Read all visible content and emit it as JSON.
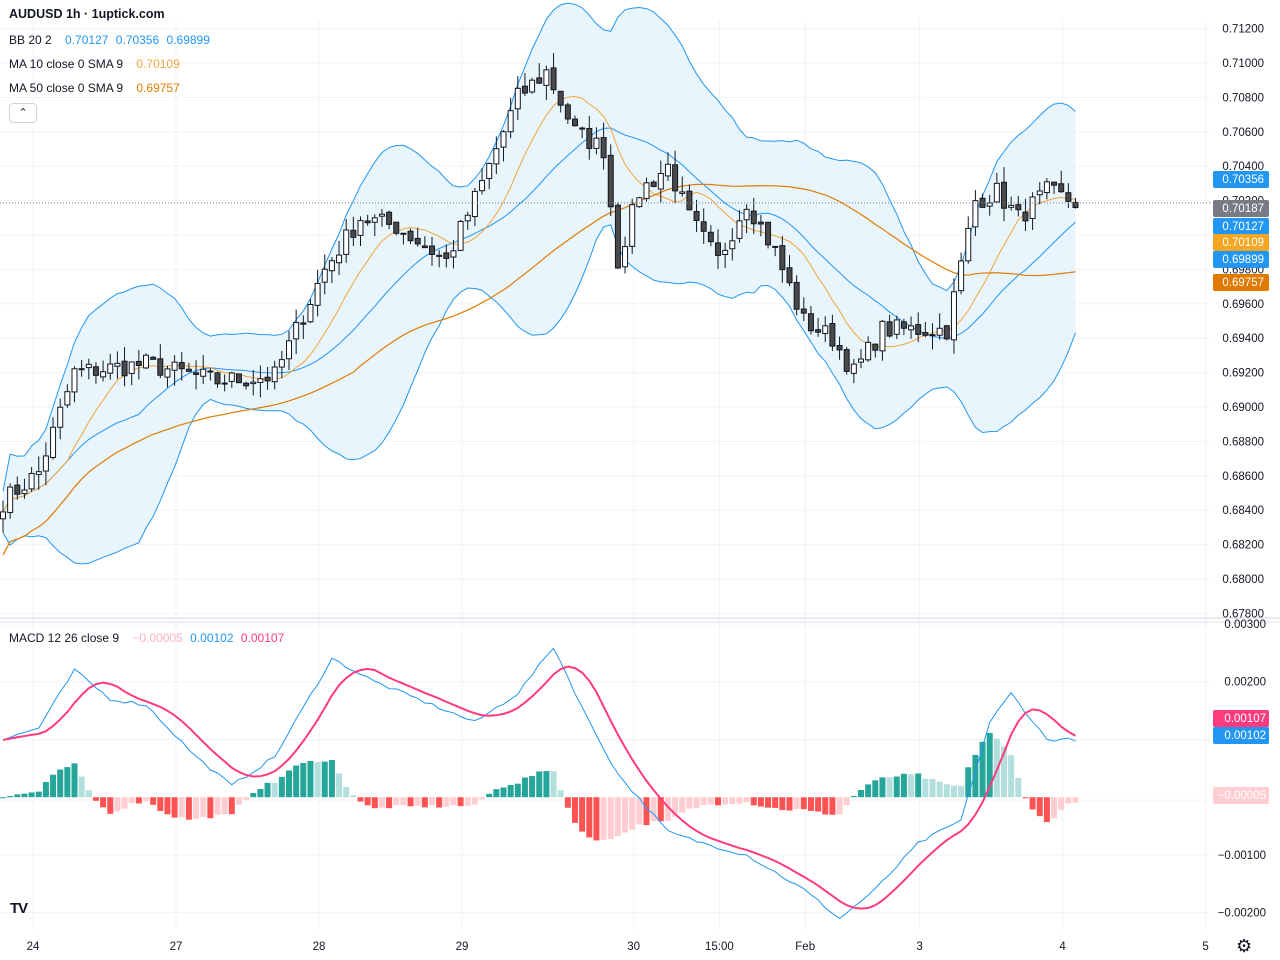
{
  "header": {
    "symbol_title": "AUDUSD 1h · 1uptick.com",
    "bb": {
      "label": "BB 20 2",
      "basis": "0.70127",
      "upper": "0.70356",
      "lower": "0.69899"
    },
    "ma10": {
      "label": "MA 10 close 0 SMA 9",
      "value": "0.70109"
    },
    "ma50": {
      "label": "MA 50 close 0 SMA 9",
      "value": "0.69757"
    },
    "collapse_icon": "chevron-up-icon"
  },
  "macd_legend": {
    "label": "MACD 12 26 close 9",
    "histogram": "−0.00005",
    "macd": "0.00102",
    "signal": "0.00107"
  },
  "colors": {
    "up_candle": "#ffffff",
    "down_candle": "#4a4a4a",
    "bb_line": "#2196f3",
    "bb_fill": "#e3f2fd",
    "ma10": "#f2a53a",
    "ma50": "#e07b00",
    "macd_line": "#2196f3",
    "signal_line": "#ff3b7f",
    "hist_up_strong": "#26a69a",
    "hist_up_weak": "#b2dfdb",
    "hist_down_strong": "#ff5252",
    "hist_down_weak": "#ffcdd2",
    "last_price_tag": "#787b86"
  },
  "price_axis": {
    "ticks": [
      "0.71200",
      "0.71000",
      "0.70800",
      "0.70600",
      "0.70400",
      "0.70200",
      "0.70000",
      "0.69800",
      "0.69600",
      "0.69400",
      "0.69200",
      "0.69000",
      "0.68800",
      "0.68600",
      "0.68400",
      "0.68200",
      "0.68000",
      "0.67800"
    ],
    "tags": [
      {
        "text": "0.70356",
        "color": "#2196f3",
        "value": 0.70356
      },
      {
        "text": "0.70187",
        "color": "#787b86",
        "value": 0.70187
      },
      {
        "text": "0.70127",
        "color": "#2196f3",
        "value": 0.70127
      },
      {
        "text": "0.70109",
        "color": "#f5a623",
        "value": 0.70109
      },
      {
        "text": "0.69899",
        "color": "#2196f3",
        "value": 0.69899
      },
      {
        "text": "0.69757",
        "color": "#e07b00",
        "value": 0.69757
      }
    ]
  },
  "macd_axis": {
    "ticks": [
      "0.00300",
      "0.00200",
      "0.00100",
      "−0.00005",
      "−0.00100",
      "−0.00200"
    ],
    "tick_values": [
      0.003,
      0.002,
      0.001,
      -5e-05,
      -0.001,
      -0.002
    ],
    "tags": [
      {
        "text": "0.00107",
        "color": "#ff3b7f",
        "value": 0.00107
      },
      {
        "text": "0.00102",
        "color": "#2196f3",
        "value": 0.00102
      },
      {
        "text": "−0.00005",
        "color": "#ffcdd2",
        "text_color": "#131722",
        "value": -5e-05
      }
    ]
  },
  "time_axis": {
    "labels": [
      "24",
      "27",
      "28",
      "29",
      "30",
      "15:00",
      "Feb",
      "3",
      "4",
      "5"
    ],
    "label_bar_index": [
      0,
      20,
      40,
      60,
      84,
      96,
      108,
      124,
      144,
      164
    ]
  },
  "chart_data": {
    "type": "candlestick",
    "symbol": "AUDUSD",
    "interval": "1h",
    "ylim": [
      0.6775,
      0.7125
    ],
    "macd_ylim": [
      -0.0023,
      0.003
    ],
    "bars": 151,
    "close_keypoints": [
      [
        0,
        0.6845
      ],
      [
        5,
        0.6862
      ],
      [
        10,
        0.692
      ],
      [
        20,
        0.6925
      ],
      [
        30,
        0.6915
      ],
      [
        38,
        0.6918
      ],
      [
        45,
        0.698
      ],
      [
        50,
        0.701
      ],
      [
        55,
        0.7005
      ],
      [
        62,
        0.6985
      ],
      [
        67,
        0.703
      ],
      [
        72,
        0.708
      ],
      [
        76,
        0.7095
      ],
      [
        80,
        0.706
      ],
      [
        84,
        0.705
      ],
      [
        86,
        0.6985
      ],
      [
        89,
        0.7025
      ],
      [
        93,
        0.704
      ],
      [
        96,
        0.701
      ],
      [
        100,
        0.6985
      ],
      [
        104,
        0.702
      ],
      [
        108,
        0.699
      ],
      [
        112,
        0.695
      ],
      [
        116,
        0.694
      ],
      [
        119,
        0.692
      ],
      [
        123,
        0.6945
      ],
      [
        128,
        0.6945
      ],
      [
        132,
        0.6945
      ],
      [
        136,
        0.702
      ],
      [
        139,
        0.7025
      ],
      [
        142,
        0.701
      ],
      [
        146,
        0.7025
      ],
      [
        150,
        0.7019
      ]
    ],
    "macd_keypoints": [
      [
        0,
        0.001
      ],
      [
        5,
        0.0012
      ],
      [
        10,
        0.0022
      ],
      [
        15,
        0.0017
      ],
      [
        20,
        0.0016
      ],
      [
        27,
        0.0007
      ],
      [
        32,
        0.0002
      ],
      [
        38,
        0.0007
      ],
      [
        46,
        0.0024
      ],
      [
        52,
        0.002
      ],
      [
        60,
        0.0016
      ],
      [
        66,
        0.0013
      ],
      [
        72,
        0.0018
      ],
      [
        77,
        0.0026
      ],
      [
        82,
        0.0013
      ],
      [
        86,
        0.0004
      ],
      [
        93,
        -0.0006
      ],
      [
        98,
        -0.0008
      ],
      [
        104,
        -0.001
      ],
      [
        112,
        -0.0016
      ],
      [
        117,
        -0.0021
      ],
      [
        122,
        -0.0016
      ],
      [
        128,
        -0.0008
      ],
      [
        134,
        -0.0004
      ],
      [
        138,
        0.0013
      ],
      [
        141,
        0.0018
      ],
      [
        146,
        0.001
      ],
      [
        150,
        0.001
      ]
    ]
  }
}
